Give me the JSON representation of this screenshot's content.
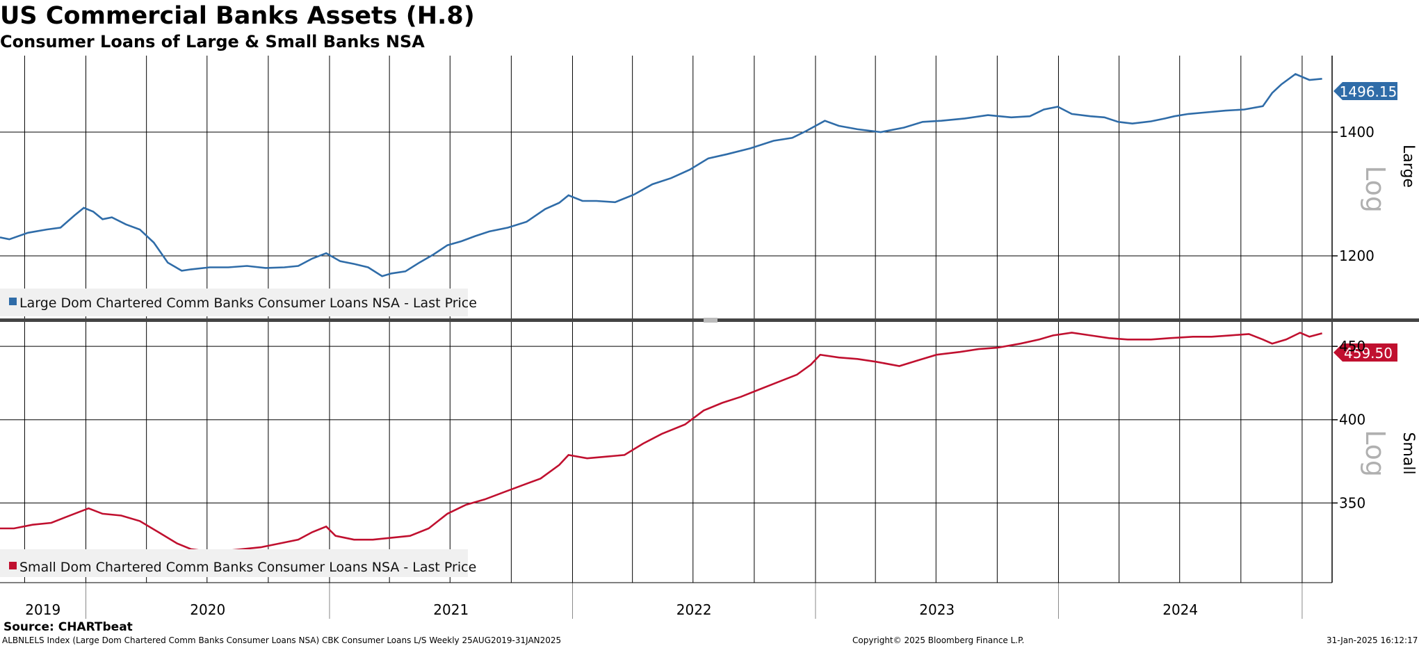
{
  "title": "US Commercial Banks Assets (H.8)",
  "subtitle": "Consumer Loans of Large & Small Banks NSA",
  "colors": {
    "large": "#2f6ca8",
    "small": "#c0102f",
    "grid": "#000000",
    "divider": "#444444"
  },
  "footer": {
    "source": "Source: CHARTbeat",
    "description": "ALBNLELS Index (Large Dom Chartered Comm Banks Consumer Loans NSA) CBK Consumer Loans L/S  Weekly 25AUG2019-31JAN2025",
    "copyright": "Copyright© 2025 Bloomberg Finance L.P.",
    "timestamp": "31-Jan-2025 16:12:17"
  },
  "chart_data": [
    {
      "type": "line",
      "panel": "Large",
      "scale_label": "Log",
      "yscale": "log",
      "ylim": [
        1110,
        1540
      ],
      "yticks": [
        1200,
        1400
      ],
      "legend": "Large Dom Chartered Comm Banks Consumer Loans NSA - Last Price",
      "last_value_label": "1496.15",
      "series": [
        {
          "name": "Large Dom Chartered Comm Banks Consumer Loans NSA - Last Price",
          "color": "#2f6ca8",
          "points": [
            [
              "2019-08-25",
              1228
            ],
            [
              "2019-09-08",
              1225
            ],
            [
              "2019-10-06",
              1235
            ],
            [
              "2019-11-03",
              1240
            ],
            [
              "2019-11-24",
              1243
            ],
            [
              "2019-12-15",
              1262
            ],
            [
              "2019-12-29",
              1274
            ],
            [
              "2020-01-12",
              1268
            ],
            [
              "2020-01-26",
              1256
            ],
            [
              "2020-02-09",
              1259
            ],
            [
              "2020-03-01",
              1248
            ],
            [
              "2020-03-22",
              1240
            ],
            [
              "2020-04-12",
              1220
            ],
            [
              "2020-05-03",
              1190
            ],
            [
              "2020-05-24",
              1178
            ],
            [
              "2020-06-07",
              1180
            ],
            [
              "2020-07-05",
              1183
            ],
            [
              "2020-08-02",
              1183
            ],
            [
              "2020-08-30",
              1185
            ],
            [
              "2020-09-27",
              1182
            ],
            [
              "2020-10-25",
              1183
            ],
            [
              "2020-11-15",
              1185
            ],
            [
              "2020-12-06",
              1196
            ],
            [
              "2020-12-27",
              1204
            ],
            [
              "2021-01-17",
              1192
            ],
            [
              "2021-02-07",
              1188
            ],
            [
              "2021-02-28",
              1183
            ],
            [
              "2021-03-21",
              1170
            ],
            [
              "2021-04-04",
              1174
            ],
            [
              "2021-04-25",
              1177
            ],
            [
              "2021-05-16",
              1190
            ],
            [
              "2021-06-06",
              1202
            ],
            [
              "2021-06-27",
              1216
            ],
            [
              "2021-07-18",
              1222
            ],
            [
              "2021-08-08",
              1230
            ],
            [
              "2021-08-29",
              1237
            ],
            [
              "2021-09-26",
              1243
            ],
            [
              "2021-10-24",
              1252
            ],
            [
              "2021-11-21",
              1272
            ],
            [
              "2021-12-12",
              1282
            ],
            [
              "2021-12-26",
              1294
            ],
            [
              "2022-01-16",
              1285
            ],
            [
              "2022-02-06",
              1285
            ],
            [
              "2022-03-06",
              1283
            ],
            [
              "2022-04-03",
              1295
            ],
            [
              "2022-05-01",
              1312
            ],
            [
              "2022-05-29",
              1322
            ],
            [
              "2022-06-26",
              1336
            ],
            [
              "2022-07-24",
              1355
            ],
            [
              "2022-08-21",
              1362
            ],
            [
              "2022-09-25",
              1372
            ],
            [
              "2022-10-30",
              1385
            ],
            [
              "2022-11-27",
              1390
            ],
            [
              "2022-12-18",
              1402
            ],
            [
              "2023-01-15",
              1420
            ],
            [
              "2023-02-05",
              1411
            ],
            [
              "2023-03-05",
              1405
            ],
            [
              "2023-04-09",
              1400
            ],
            [
              "2023-05-14",
              1408
            ],
            [
              "2023-06-11",
              1418
            ],
            [
              "2023-07-09",
              1420
            ],
            [
              "2023-08-13",
              1424
            ],
            [
              "2023-09-17",
              1430
            ],
            [
              "2023-10-22",
              1426
            ],
            [
              "2023-11-19",
              1428
            ],
            [
              "2023-12-10",
              1440
            ],
            [
              "2023-12-31",
              1445
            ],
            [
              "2024-01-21",
              1432
            ],
            [
              "2024-02-18",
              1428
            ],
            [
              "2024-03-10",
              1426
            ],
            [
              "2024-03-31",
              1418
            ],
            [
              "2024-04-21",
              1415
            ],
            [
              "2024-05-19",
              1419
            ],
            [
              "2024-06-09",
              1424
            ],
            [
              "2024-06-23",
              1428
            ],
            [
              "2024-07-14",
              1432
            ],
            [
              "2024-08-11",
              1435
            ],
            [
              "2024-09-08",
              1438
            ],
            [
              "2024-10-06",
              1440
            ],
            [
              "2024-11-03",
              1446
            ],
            [
              "2024-11-17",
              1470
            ],
            [
              "2024-12-01",
              1486
            ],
            [
              "2024-12-22",
              1505
            ],
            [
              "2025-01-12",
              1494
            ],
            [
              "2025-01-31",
              1496.15
            ]
          ]
        }
      ]
    },
    {
      "type": "line",
      "panel": "Small",
      "scale_label": "Log",
      "yscale": "log",
      "ylim": [
        308,
        468
      ],
      "yticks": [
        350,
        400,
        450
      ],
      "legend": "Small Dom Chartered Comm Banks Consumer Loans NSA - Last Price",
      "last_value_label": "459.50",
      "series": [
        {
          "name": "Small Dom Chartered Comm Banks Consumer Loans NSA - Last Price",
          "color": "#c0102f",
          "points": [
            [
              "2019-08-25",
              336
            ],
            [
              "2019-09-15",
              336
            ],
            [
              "2019-10-13",
              338
            ],
            [
              "2019-11-10",
              339
            ],
            [
              "2019-12-01",
              342
            ],
            [
              "2019-12-22",
              345
            ],
            [
              "2020-01-05",
              347
            ],
            [
              "2020-01-26",
              344
            ],
            [
              "2020-02-23",
              343
            ],
            [
              "2020-03-22",
              340
            ],
            [
              "2020-04-19",
              334
            ],
            [
              "2020-05-17",
              328
            ],
            [
              "2020-06-07",
              325
            ],
            [
              "2020-06-28",
              324
            ],
            [
              "2020-07-26",
              324
            ],
            [
              "2020-08-23",
              325
            ],
            [
              "2020-09-20",
              326
            ],
            [
              "2020-10-18",
              328
            ],
            [
              "2020-11-15",
              330
            ],
            [
              "2020-12-06",
              334
            ],
            [
              "2020-12-27",
              337
            ],
            [
              "2021-01-10",
              332
            ],
            [
              "2021-02-07",
              330
            ],
            [
              "2021-03-07",
              330
            ],
            [
              "2021-04-04",
              331
            ],
            [
              "2021-05-02",
              332
            ],
            [
              "2021-05-30",
              336
            ],
            [
              "2021-06-27",
              344
            ],
            [
              "2021-07-25",
              349
            ],
            [
              "2021-08-22",
              352
            ],
            [
              "2021-09-19",
              356
            ],
            [
              "2021-10-17",
              360
            ],
            [
              "2021-11-14",
              364
            ],
            [
              "2021-12-12",
              372
            ],
            [
              "2021-12-26",
              378
            ],
            [
              "2022-01-23",
              376
            ],
            [
              "2022-02-20",
              377
            ],
            [
              "2022-03-20",
              378
            ],
            [
              "2022-04-17",
              385
            ],
            [
              "2022-05-15",
              391
            ],
            [
              "2022-06-19",
              397
            ],
            [
              "2022-07-17",
              406
            ],
            [
              "2022-08-14",
              411
            ],
            [
              "2022-09-11",
              415
            ],
            [
              "2022-10-09",
              420
            ],
            [
              "2022-11-06",
              425
            ],
            [
              "2022-12-04",
              430
            ],
            [
              "2022-12-25",
              437
            ],
            [
              "2023-01-08",
              444
            ],
            [
              "2023-02-05",
              442
            ],
            [
              "2023-03-05",
              441
            ],
            [
              "2023-04-02",
              439
            ],
            [
              "2023-05-07",
              436
            ],
            [
              "2023-06-04",
              440
            ],
            [
              "2023-07-02",
              444
            ],
            [
              "2023-08-06",
              446
            ],
            [
              "2023-09-03",
              448
            ],
            [
              "2023-10-01",
              449
            ],
            [
              "2023-11-05",
              452
            ],
            [
              "2023-12-03",
              455
            ],
            [
              "2023-12-24",
              458
            ],
            [
              "2024-01-21",
              460
            ],
            [
              "2024-02-18",
              458
            ],
            [
              "2024-03-17",
              456
            ],
            [
              "2024-04-14",
              455
            ],
            [
              "2024-05-19",
              455
            ],
            [
              "2024-06-16",
              456
            ],
            [
              "2024-07-21",
              457
            ],
            [
              "2024-08-18",
              457
            ],
            [
              "2024-09-15",
              458
            ],
            [
              "2024-10-13",
              459
            ],
            [
              "2024-11-03",
              455
            ],
            [
              "2024-11-17",
              452
            ],
            [
              "2024-12-08",
              455
            ],
            [
              "2024-12-29",
              460
            ],
            [
              "2025-01-12",
              457
            ],
            [
              "2025-01-31",
              459.5
            ]
          ]
        }
      ]
    }
  ],
  "x_axis": {
    "years": [
      "2019",
      "2020",
      "2021",
      "2022",
      "2023",
      "2024"
    ],
    "range": [
      "2019-08-25",
      "2025-02-15"
    ]
  }
}
